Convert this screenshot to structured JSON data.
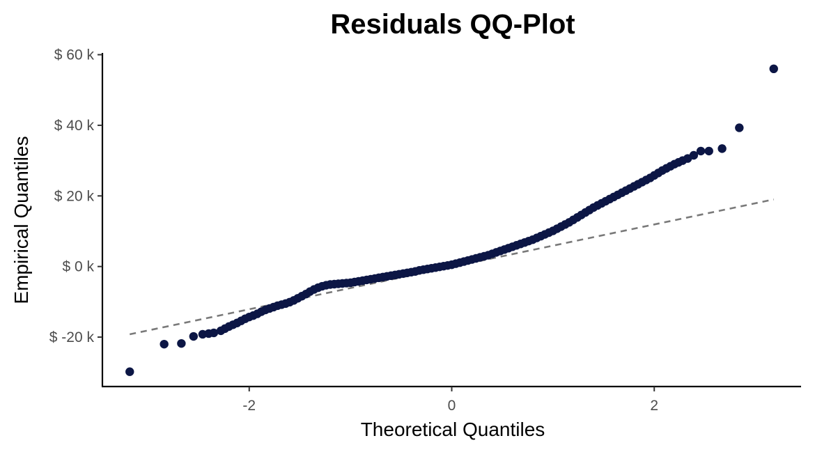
{
  "chart_data": {
    "type": "scatter",
    "title": "Residuals QQ-Plot",
    "xlabel": "Theoretical Quantiles",
    "ylabel": "Empirical Quantiles",
    "xlim": [
      -3.45,
      3.45
    ],
    "ylim": [
      -34000,
      60500
    ],
    "x_ticks": [
      -2,
      0,
      2
    ],
    "x_tick_labels": [
      "-2",
      "0",
      "2"
    ],
    "y_ticks": [
      -20000,
      0,
      20000,
      40000,
      60000
    ],
    "y_tick_labels": [
      "$ -20 k",
      "$ 0 k",
      "$ 20 k",
      "$ 40 k",
      "$ 60 k"
    ],
    "grid": false,
    "legend": "none",
    "point_color": "#0c1645",
    "reference_line": {
      "style": "dashed",
      "color": "#7a7a7a",
      "x": [
        -3.18,
        3.18
      ],
      "y": [
        -19200,
        19000
      ]
    },
    "series": [
      {
        "x": [
          -3.18,
          -2.84,
          -2.67,
          -2.55,
          -2.46,
          -2.4,
          -2.35,
          -2.28,
          -2.24,
          -2.2,
          -2.16,
          -2.12,
          -2.08,
          -2.04,
          -2.0,
          -1.96,
          -1.92,
          -1.88,
          -1.84,
          -1.8,
          -1.76,
          -1.72,
          -1.68,
          -1.64,
          -1.6,
          -1.56,
          -1.52,
          -1.48,
          -1.44,
          -1.4,
          -1.36,
          -1.32,
          -1.28,
          -1.24,
          -1.2,
          -1.16,
          -1.12,
          -1.08,
          -1.04,
          -1.0,
          -0.96,
          -0.92,
          -0.88,
          -0.84,
          -0.8,
          -0.76,
          -0.72,
          -0.68,
          -0.64,
          -0.6,
          -0.56,
          -0.52,
          -0.48,
          -0.44,
          -0.4,
          -0.36,
          -0.32,
          -0.28,
          -0.24,
          -0.2,
          -0.16,
          -0.12,
          -0.08,
          -0.04,
          0.0,
          0.04,
          0.08,
          0.12,
          0.16,
          0.2,
          0.24,
          0.28,
          0.32,
          0.36,
          0.4,
          0.44,
          0.48,
          0.52,
          0.56,
          0.6,
          0.64,
          0.68,
          0.72,
          0.76,
          0.8,
          0.84,
          0.88,
          0.92,
          0.96,
          1.0,
          1.04,
          1.08,
          1.12,
          1.16,
          1.2,
          1.24,
          1.28,
          1.32,
          1.36,
          1.4,
          1.44,
          1.48,
          1.52,
          1.56,
          1.6,
          1.64,
          1.68,
          1.72,
          1.76,
          1.8,
          1.84,
          1.88,
          1.92,
          1.96,
          2.0,
          2.04,
          2.08,
          2.12,
          2.16,
          2.2,
          2.24,
          2.28,
          2.33,
          2.39,
          2.46,
          2.54,
          2.67,
          2.84,
          3.18
        ],
        "y": [
          -29800,
          -22000,
          -21800,
          -19800,
          -19200,
          -19000,
          -18800,
          -18200,
          -17600,
          -17000,
          -16500,
          -16000,
          -15400,
          -14800,
          -14300,
          -13900,
          -13400,
          -12800,
          -12300,
          -11900,
          -11500,
          -11100,
          -10800,
          -10500,
          -10100,
          -9600,
          -9000,
          -8400,
          -7800,
          -7100,
          -6500,
          -6000,
          -5600,
          -5300,
          -5100,
          -5000,
          -4900,
          -4800,
          -4700,
          -4600,
          -4400,
          -4200,
          -4000,
          -3800,
          -3600,
          -3400,
          -3200,
          -3000,
          -2800,
          -2600,
          -2400,
          -2200,
          -2000,
          -1800,
          -1600,
          -1400,
          -1100,
          -900,
          -700,
          -500,
          -300,
          -100,
          100,
          300,
          500,
          800,
          1100,
          1400,
          1700,
          2000,
          2300,
          2600,
          2900,
          3200,
          3600,
          4000,
          4400,
          4800,
          5200,
          5600,
          6000,
          6400,
          6800,
          7200,
          7600,
          8100,
          8600,
          9100,
          9600,
          10100,
          10700,
          11300,
          11900,
          12500,
          13200,
          13900,
          14600,
          15300,
          16000,
          16700,
          17300,
          17900,
          18500,
          19100,
          19700,
          20300,
          20900,
          21500,
          22100,
          22700,
          23300,
          23900,
          24500,
          25100,
          25800,
          26500,
          27200,
          27800,
          28400,
          29000,
          29500,
          30000,
          30600,
          31500,
          32700,
          32700,
          33400,
          39300,
          56000
        ]
      }
    ]
  }
}
